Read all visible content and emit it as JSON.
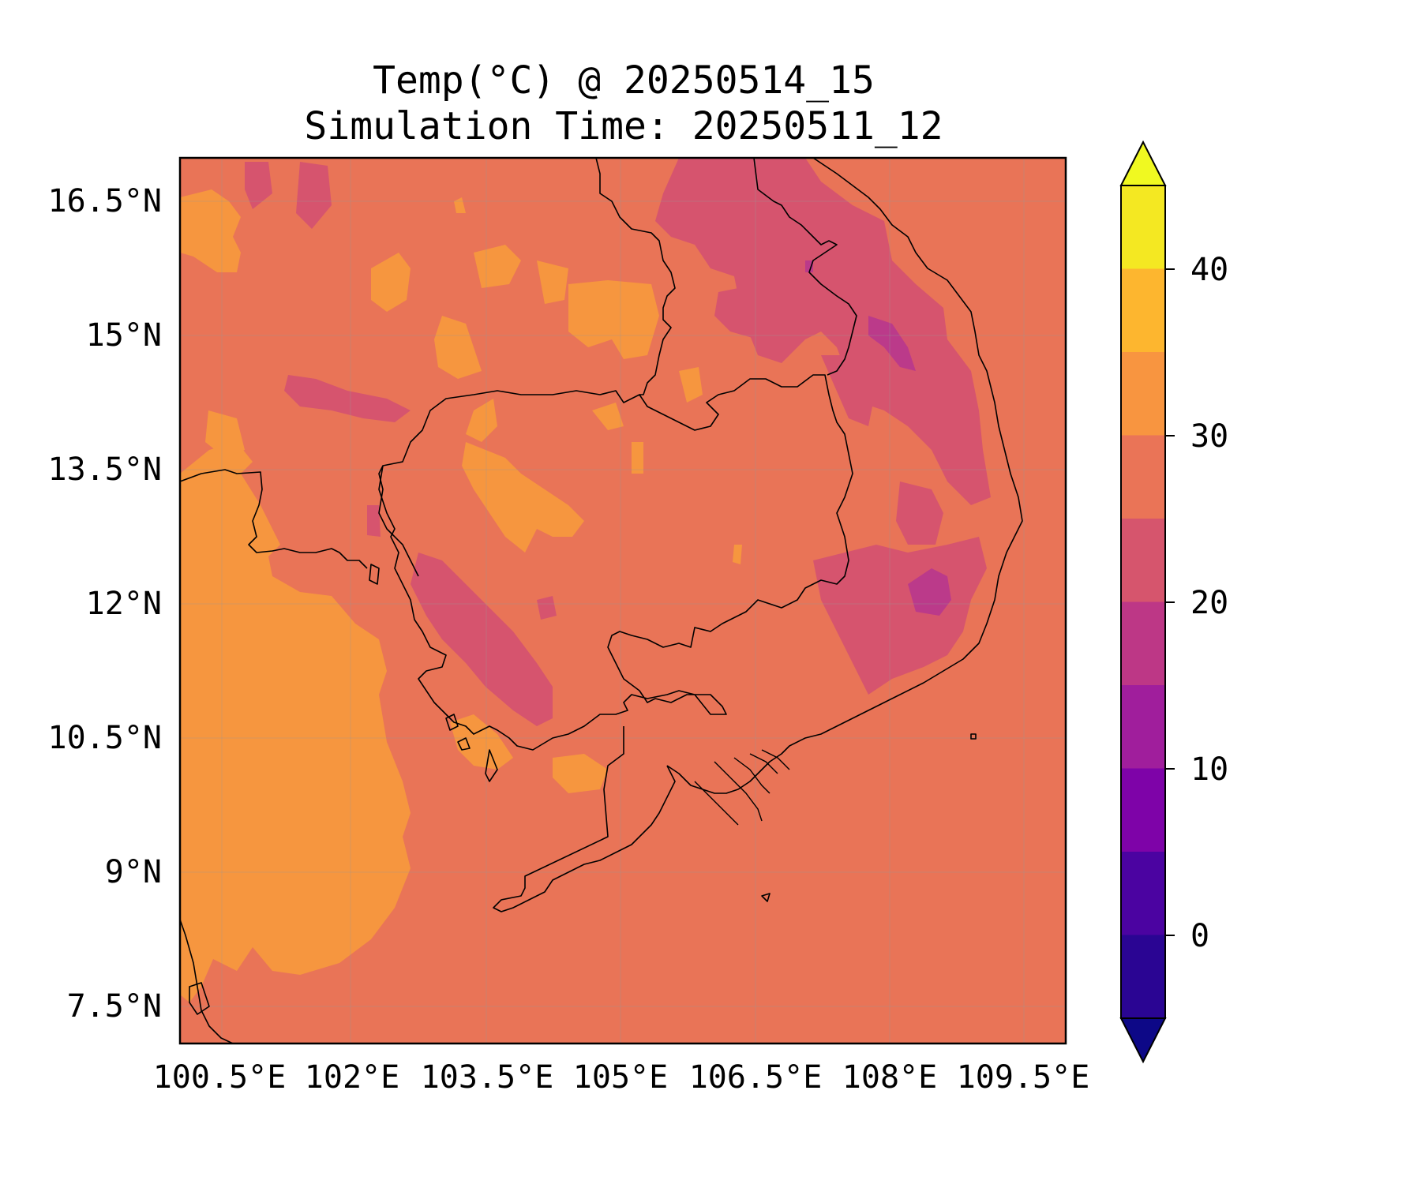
{
  "title": {
    "line1": "Temp(°C) @ 20250514_15",
    "line2": "Simulation Time: 20250511_12"
  },
  "map": {
    "region": "Cambodia / southern Indochina",
    "background_temp_band": "25–30",
    "lon_range": [
      100.3,
      110.2
    ],
    "lat_range": [
      7.1,
      17.0
    ],
    "x_ticks": [
      "100.5°E",
      "102°E",
      "103.5°E",
      "105°E",
      "106.5°E",
      "108°E",
      "109.5°E"
    ],
    "y_ticks": [
      "16.5°N",
      "15°N",
      "13.5°N",
      "12°N",
      "10.5°N",
      "9°N",
      "7.5°N"
    ],
    "colors": {
      "band_20_25": "#d6546e",
      "band_25_30": "#e97457",
      "band_30_35": "#f6963f",
      "band_15_20": "#bb3a8a",
      "border": "#000000"
    }
  },
  "colorbar": {
    "tick_labels": [
      "40",
      "30",
      "20",
      "10",
      "0"
    ],
    "levels": [
      -5,
      0,
      5,
      10,
      15,
      20,
      25,
      30,
      35,
      40,
      45
    ],
    "extend": "both",
    "colors": [
      "#0d0887",
      "#2a0593",
      "#4b03a1",
      "#7e03a8",
      "#a01e9c",
      "#bd3786",
      "#d6556d",
      "#ea7457",
      "#f89540",
      "#fdb62f",
      "#f4e822",
      "#f0f921"
    ]
  }
}
